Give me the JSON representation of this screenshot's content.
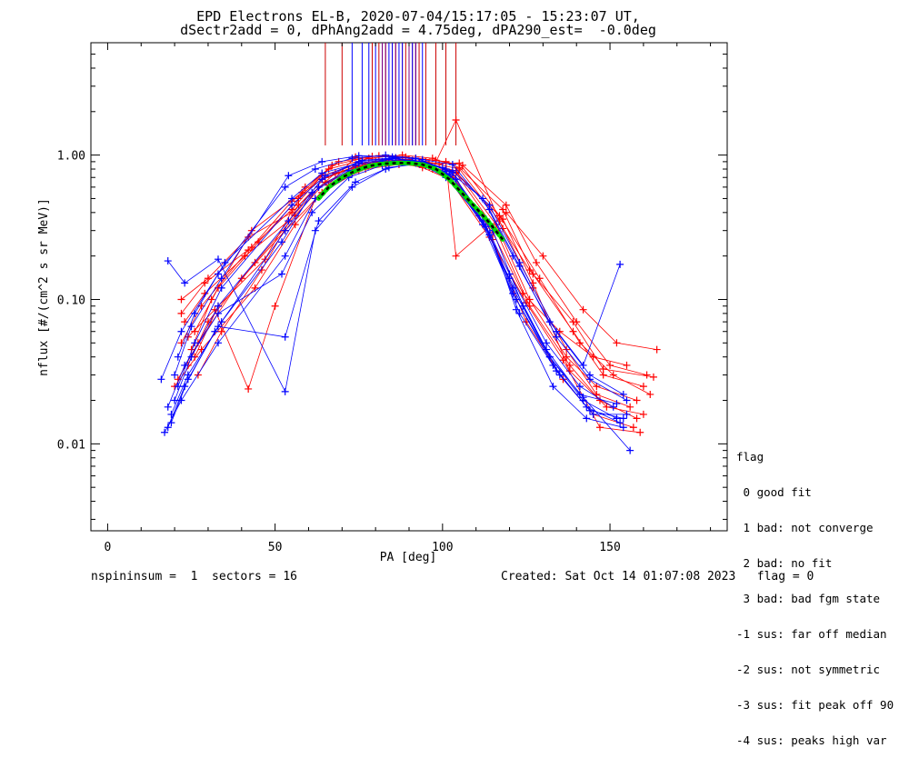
{
  "title_line1": "EPD Electrons EL-B, 2020-07-04/15:17:05 - 15:23:07 UT,",
  "title_line2": "dSectr2add = 0, dPhAng2add = 4.75deg, dPA290_est=  -0.0deg",
  "legend": {
    "title": "flag",
    "items": [
      " 0 good fit",
      " 1 bad: not converge",
      " 2 bad: no fit",
      " 3 bad: bad fgm state",
      "-1 sus: far off median",
      "-2 sus: not symmetric",
      "-3 sus: fit peak off 90",
      "-4 sus: peaks high var"
    ]
  },
  "footer": {
    "left": "nspininsum =  1  sectors = 16",
    "right": "Created: Sat Oct 14 01:07:08 2023   flag = 0"
  },
  "colors": {
    "series_red": "#ff0000",
    "series_blue": "#0000ff",
    "fit_green": "#00e000",
    "fit_black": "#000000",
    "marker_line_red": "#cc0000",
    "marker_line_blue": "#0000ff",
    "marker_line_purple": "#800080"
  },
  "chart_data": {
    "type": "line",
    "xlabel": "PA [deg]",
    "ylabel": "nflux [#/(cm^2 s sr MeV)]",
    "xlim": [
      -5,
      185
    ],
    "ylim": [
      0.0025,
      6.0
    ],
    "yscale": "log",
    "x_ticks": [
      0,
      50,
      100,
      150
    ],
    "y_ticks": [
      0.01,
      0.1,
      1.0
    ],
    "y_tick_labels": [
      "0.01",
      "0.10",
      "1.00"
    ],
    "grid": false,
    "legend_position": "right, outside plot",
    "series": [
      {
        "color": "red",
        "x": [
          22,
          28,
          42,
          55,
          64,
          76,
          86,
          95,
          105,
          117,
          127,
          137,
          146,
          156
        ],
        "y": [
          0.05,
          0.09,
          0.22,
          0.42,
          0.72,
          0.88,
          0.95,
          0.9,
          0.8,
          0.35,
          0.12,
          0.045,
          0.022,
          0.018
        ]
      },
      {
        "color": "red",
        "x": [
          24,
          30,
          44,
          56,
          65,
          77,
          87,
          96,
          104,
          116,
          126,
          138,
          147,
          158
        ],
        "y": [
          0.035,
          0.07,
          0.18,
          0.38,
          0.65,
          0.85,
          0.92,
          0.88,
          0.75,
          0.3,
          0.09,
          0.035,
          0.02,
          0.015
        ]
      },
      {
        "color": "red",
        "x": [
          26,
          33,
          45,
          57,
          66,
          78,
          88,
          97,
          105,
          118,
          127,
          139,
          148,
          160
        ],
        "y": [
          0.06,
          0.12,
          0.25,
          0.5,
          0.8,
          0.95,
          1.0,
          0.95,
          0.82,
          0.42,
          0.15,
          0.06,
          0.03,
          0.025
        ]
      },
      {
        "color": "red",
        "x": [
          21,
          27,
          40,
          53,
          64,
          75,
          85,
          94,
          103,
          115,
          125,
          136,
          145,
          157
        ],
        "y": [
          0.028,
          0.05,
          0.14,
          0.3,
          0.55,
          0.78,
          0.9,
          0.85,
          0.7,
          0.26,
          0.07,
          0.028,
          0.016,
          0.013
        ]
      },
      {
        "color": "red",
        "x": [
          25,
          31,
          43,
          58,
          67,
          79,
          89,
          98,
          106,
          119,
          128,
          140,
          150,
          161
        ],
        "y": [
          0.045,
          0.1,
          0.3,
          0.55,
          0.85,
          0.98,
          0.97,
          0.92,
          0.85,
          0.45,
          0.18,
          0.07,
          0.035,
          0.03
        ]
      },
      {
        "color": "red",
        "x": [
          23,
          29,
          41,
          54,
          63,
          74,
          84,
          93,
          104,
          116,
          126,
          137,
          146,
          158
        ],
        "y": [
          0.07,
          0.11,
          0.2,
          0.35,
          0.6,
          0.82,
          0.88,
          0.9,
          0.78,
          0.33,
          0.1,
          0.04,
          0.025,
          0.02
        ]
      },
      {
        "color": "red",
        "x": [
          27,
          34,
          46,
          57,
          68,
          80,
          90,
          99,
          105,
          117,
          129,
          141,
          151,
          162
        ],
        "y": [
          0.03,
          0.06,
          0.16,
          0.45,
          0.75,
          0.9,
          0.93,
          0.87,
          0.88,
          0.38,
          0.14,
          0.05,
          0.03,
          0.022
        ]
      },
      {
        "color": "red",
        "x": [
          22,
          30,
          42,
          55,
          65,
          76,
          86,
          95,
          103,
          115,
          124,
          135,
          145,
          155
        ],
        "y": [
          0.1,
          0.14,
          0.27,
          0.4,
          0.7,
          0.87,
          0.91,
          0.84,
          0.72,
          0.29,
          0.11,
          0.06,
          0.04,
          0.035
        ]
      },
      {
        "color": "red",
        "x": [
          20,
          28,
          44,
          56,
          66,
          77,
          87,
          96,
          104,
          118,
          127,
          138,
          149,
          160
        ],
        "y": [
          0.025,
          0.045,
          0.12,
          0.33,
          0.62,
          0.8,
          0.86,
          0.83,
          0.76,
          0.36,
          0.13,
          0.032,
          0.018,
          0.016
        ]
      },
      {
        "color": "red",
        "x": [
          24,
          32,
          42,
          50,
          62,
          74,
          88,
          97,
          104,
          118,
          126,
          139,
          148,
          163
        ],
        "y": [
          0.055,
          0.085,
          0.024,
          0.09,
          0.5,
          0.97,
          0.89,
          0.8,
          1.75,
          0.31,
          0.16,
          0.07,
          0.033,
          0.029
        ]
      },
      {
        "color": "red",
        "x": [
          26,
          33,
          47,
          59,
          69,
          81,
          92,
          101,
          104,
          119,
          130,
          142,
          152,
          164
        ],
        "y": [
          0.04,
          0.09,
          0.19,
          0.6,
          0.9,
          0.99,
          0.95,
          0.9,
          0.2,
          0.4,
          0.2,
          0.085,
          0.05,
          0.045
        ]
      },
      {
        "color": "red",
        "x": [
          22,
          29,
          43,
          55,
          64,
          75,
          85,
          94,
          102,
          114,
          125,
          136,
          147,
          159
        ],
        "y": [
          0.08,
          0.13,
          0.23,
          0.48,
          0.68,
          0.84,
          0.9,
          0.82,
          0.68,
          0.27,
          0.095,
          0.038,
          0.013,
          0.012
        ]
      },
      {
        "color": "blue",
        "x": [
          17,
          22,
          33,
          53,
          62,
          73,
          83,
          92,
          101,
          112,
          121,
          132,
          142,
          152
        ],
        "y": [
          0.012,
          0.02,
          0.05,
          0.2,
          0.5,
          0.75,
          0.88,
          0.9,
          0.7,
          0.35,
          0.12,
          0.04,
          0.02,
          0.015
        ]
      },
      {
        "color": "blue",
        "x": [
          19,
          24,
          34,
          52,
          61,
          72,
          82,
          91,
          100,
          111,
          120,
          131,
          141,
          151
        ],
        "y": [
          0.016,
          0.03,
          0.07,
          0.25,
          0.55,
          0.78,
          0.9,
          0.92,
          0.75,
          0.4,
          0.15,
          0.05,
          0.025,
          0.018
        ]
      },
      {
        "color": "blue",
        "x": [
          18,
          23,
          32,
          53,
          63,
          74,
          84,
          93,
          102,
          113,
          122,
          133,
          143,
          153
        ],
        "y": [
          0.013,
          0.025,
          0.06,
          0.3,
          0.6,
          0.85,
          0.93,
          0.88,
          0.72,
          0.32,
          0.1,
          0.035,
          0.018,
          0.014
        ]
      },
      {
        "color": "blue",
        "x": [
          20,
          25,
          33,
          54,
          64,
          75,
          85,
          94,
          103,
          114,
          123,
          134,
          144,
          154
        ],
        "y": [
          0.02,
          0.04,
          0.09,
          0.35,
          0.68,
          0.9,
          0.95,
          0.9,
          0.78,
          0.45,
          0.18,
          0.06,
          0.03,
          0.022
        ]
      },
      {
        "color": "blue",
        "x": [
          21,
          26,
          34,
          55,
          65,
          76,
          86,
          95,
          104,
          115,
          124,
          135,
          145,
          155
        ],
        "y": [
          0.025,
          0.05,
          0.12,
          0.45,
          0.72,
          0.92,
          0.96,
          0.85,
          0.68,
          0.3,
          0.09,
          0.03,
          0.016,
          0.016
        ]
      },
      {
        "color": "blue",
        "x": [
          16,
          22,
          33,
          53,
          62,
          73,
          83,
          92,
          101,
          112,
          121,
          132,
          142,
          153
        ],
        "y": [
          0.028,
          0.06,
          0.15,
          0.6,
          0.8,
          0.95,
          1.0,
          0.95,
          0.8,
          0.5,
          0.2,
          0.07,
          0.035,
          0.175
        ]
      },
      {
        "color": "blue",
        "x": [
          18,
          23,
          33,
          52,
          61,
          72,
          82,
          91,
          100,
          111,
          120,
          131,
          141,
          152
        ],
        "y": [
          0.018,
          0.035,
          0.08,
          0.15,
          0.4,
          0.7,
          0.85,
          0.9,
          0.82,
          0.38,
          0.14,
          0.045,
          0.022,
          0.019
        ]
      },
      {
        "color": "blue",
        "x": [
          19,
          24,
          33,
          53,
          63,
          74,
          84,
          93,
          102,
          113,
          122,
          133,
          143,
          154
        ],
        "y": [
          0.014,
          0.028,
          0.065,
          0.055,
          0.35,
          0.65,
          0.82,
          0.87,
          0.74,
          0.36,
          0.085,
          0.025,
          0.015,
          0.013
        ]
      },
      {
        "color": "blue",
        "x": [
          20,
          25,
          34,
          54,
          64,
          75,
          85,
          94,
          103,
          114,
          123,
          134,
          144,
          155
        ],
        "y": [
          0.03,
          0.065,
          0.14,
          0.72,
          0.9,
          0.99,
          0.97,
          0.93,
          0.86,
          0.42,
          0.17,
          0.055,
          0.028,
          0.02
        ]
      },
      {
        "color": "blue",
        "x": [
          18,
          23,
          33,
          53,
          62,
          73,
          83,
          92,
          101,
          112,
          121,
          132,
          142,
          156
        ],
        "y": [
          0.185,
          0.13,
          0.19,
          0.023,
          0.3,
          0.6,
          0.8,
          0.88,
          0.77,
          0.33,
          0.11,
          0.04,
          0.021,
          0.009
        ]
      },
      {
        "color": "blue",
        "x": [
          21,
          26,
          35,
          55,
          64,
          75,
          85,
          94,
          103,
          114,
          123,
          134,
          144,
          154
        ],
        "y": [
          0.04,
          0.08,
          0.18,
          0.5,
          0.75,
          0.88,
          0.94,
          0.9,
          0.76,
          0.28,
          0.08,
          0.032,
          0.017,
          0.015
        ]
      }
    ],
    "fit_curve": {
      "x": [
        63,
        66,
        70,
        74,
        78,
        82,
        86,
        90,
        94,
        98,
        102,
        106,
        110,
        114,
        118
      ],
      "y": [
        0.5,
        0.6,
        0.7,
        0.78,
        0.84,
        0.87,
        0.88,
        0.88,
        0.86,
        0.8,
        0.68,
        0.54,
        0.43,
        0.34,
        0.26
      ]
    },
    "pa_markers": {
      "red": [
        65,
        70,
        79,
        81,
        82,
        83,
        85,
        86,
        88,
        89,
        91,
        92,
        93,
        95,
        98,
        101,
        104
      ],
      "blue": [
        73,
        76,
        78,
        80,
        82,
        84,
        85,
        87,
        88,
        90,
        91,
        92,
        94
      ],
      "purple": [
        82,
        83,
        86,
        90,
        92
      ]
    }
  }
}
